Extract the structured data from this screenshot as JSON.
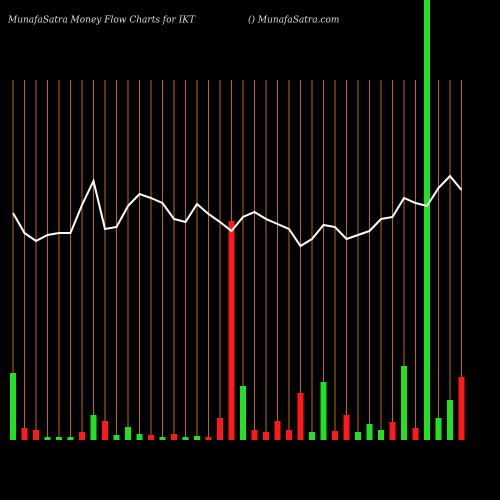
{
  "chart_data": {
    "type": "bar",
    "title": "MunafaSatra  Money Flow  Charts for IKT",
    "subtitle": "() MunafaSatra.com",
    "categories": [
      null,
      null,
      null,
      null,
      null,
      null,
      null,
      null,
      null,
      null,
      null,
      null,
      null,
      null,
      null,
      null,
      null,
      null,
      null,
      null,
      null,
      null,
      null,
      null,
      null,
      null,
      null,
      null,
      null,
      null,
      null,
      null,
      null,
      null,
      null,
      null,
      null,
      null,
      null,
      null
    ],
    "values": [
      67,
      12,
      10,
      3,
      3,
      3,
      8,
      25,
      19,
      5,
      13,
      6,
      5,
      3,
      6,
      3,
      4,
      3,
      22,
      219,
      54,
      10,
      8,
      19,
      10,
      47,
      8,
      58,
      9,
      25,
      8,
      16,
      10,
      18,
      74,
      12,
      440,
      22,
      40,
      63
    ],
    "colors": [
      "#22e022",
      "#ff1a1a",
      "#ff1a1a",
      "#22e022",
      "#22e022",
      "#22e022",
      "#ff1a1a",
      "#22e022",
      "#ff1a1a",
      "#22e022",
      "#22e022",
      "#22e022",
      "#ff1a1a",
      "#22e022",
      "#ff1a1a",
      "#22e022",
      "#22e022",
      "#ff1a1a",
      "#ff1a1a",
      "#ff1a1a",
      "#22e022",
      "#ff1a1a",
      "#ff1a1a",
      "#ff1a1a",
      "#ff1a1a",
      "#ff1a1a",
      "#22e022",
      "#22e022",
      "#ff1a1a",
      "#ff1a1a",
      "#22e022",
      "#22e022",
      "#22e022",
      "#ff1a1a",
      "#22e022",
      "#ff1a1a",
      "#22e022",
      "#22e022",
      "#22e022",
      "#ff1a1a"
    ],
    "line": {
      "color": "#ffffff",
      "values": [
        227,
        207,
        199,
        205,
        207,
        207,
        235,
        259,
        211,
        213,
        234,
        246,
        242,
        237,
        221,
        218,
        236,
        226,
        218,
        209,
        223,
        228,
        221,
        216,
        211,
        194,
        201,
        215,
        213,
        201,
        205,
        209,
        221,
        223,
        242,
        237,
        234,
        252,
        264,
        250
      ]
    },
    "gridline_color": "#b86a10",
    "ylim": [
      0,
      440
    ]
  }
}
